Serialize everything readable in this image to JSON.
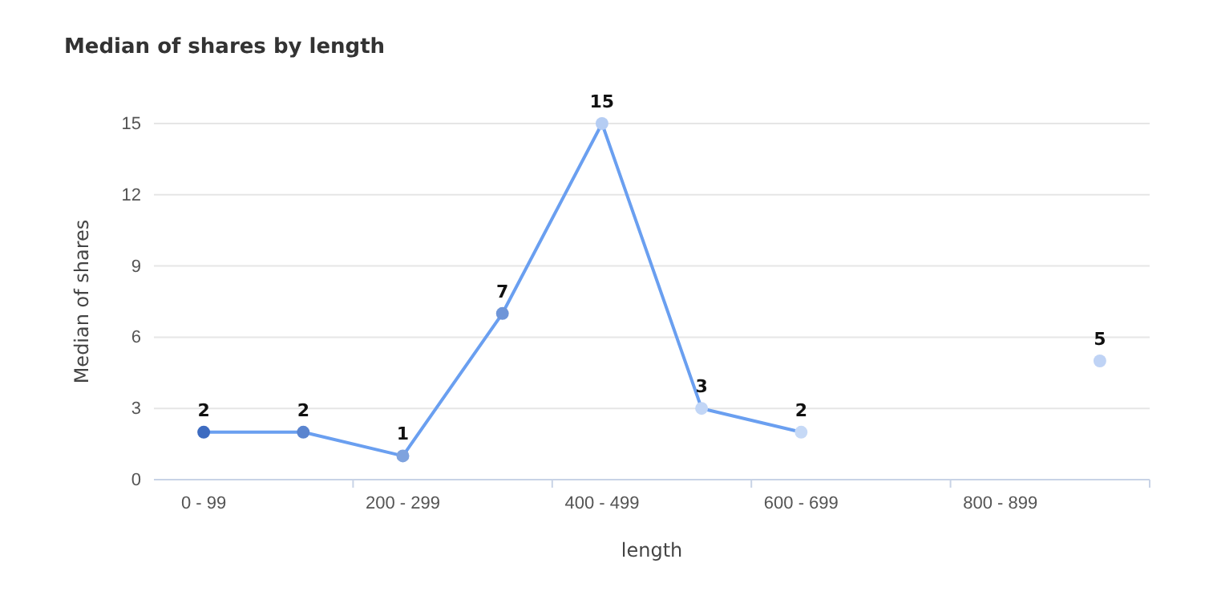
{
  "chart_data": {
    "type": "line",
    "title": "Median of shares by length",
    "xlabel": "length",
    "ylabel": "Median of shares",
    "categories": [
      "0 - 99",
      null,
      "200 - 299",
      null,
      "400 - 499",
      null,
      "600 - 699",
      null,
      "800 - 899",
      null
    ],
    "series": [
      {
        "color": "#6a9ff0",
        "colors": [
          "#3d6bc0",
          "#5a84cf",
          "#7fa3de",
          "#6e95d8",
          "#b5cdf3",
          "#c2d6f6",
          "#c6d9f6",
          null,
          null,
          "#bfd3f5"
        ],
        "values": [
          2,
          2,
          1,
          7,
          15,
          3,
          2,
          null,
          null,
          5
        ]
      }
    ],
    "ylim": [
      0,
      15
    ],
    "yticks": [
      0,
      3,
      6,
      9,
      12,
      15
    ],
    "grid": "y",
    "data_labels": true,
    "marker": "circle",
    "line_style": "solid"
  }
}
